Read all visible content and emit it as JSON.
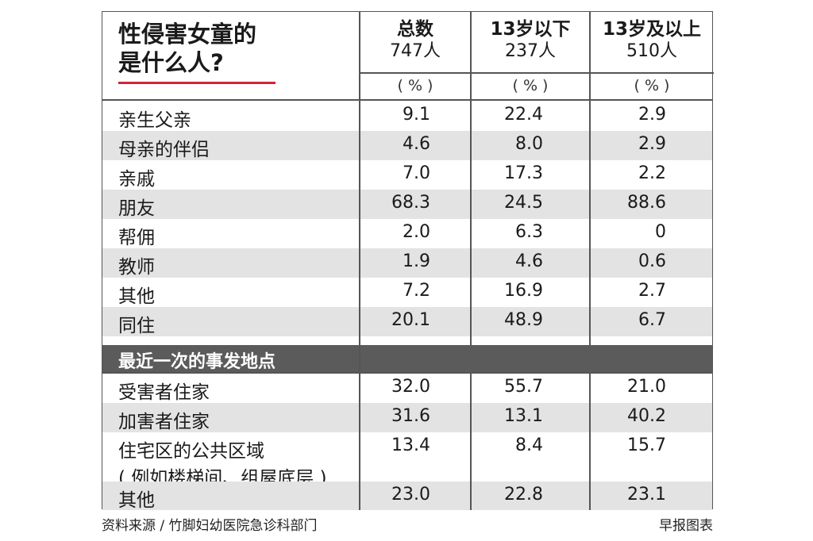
{
  "chart_data": {
    "type": "table",
    "title": "性侵害女童的是什么人?",
    "title_lines": [
      "性侵害女童的",
      "是什么人?"
    ],
    "columns": [
      {
        "name": "总数",
        "count": "747人",
        "unit": "( % )"
      },
      {
        "name": "13岁以下",
        "count": "237人",
        "unit": "( % )"
      },
      {
        "name": "13岁及以上",
        "count": "510人",
        "unit": "( % )"
      }
    ],
    "rows": [
      {
        "label": "亲生父亲",
        "values": [
          "9.1",
          "22.4",
          "2.9"
        ]
      },
      {
        "label": "母亲的伴侣",
        "values": [
          "4.6",
          "8.0",
          "2.9"
        ]
      },
      {
        "label": "亲戚",
        "values": [
          "7.0",
          "17.3",
          "2.2"
        ]
      },
      {
        "label": "朋友",
        "values": [
          "68.3",
          "24.5",
          "88.6"
        ]
      },
      {
        "label": "帮佣",
        "values": [
          "2.0",
          "6.3",
          "0"
        ]
      },
      {
        "label": "教师",
        "values": [
          "1.9",
          "4.6",
          "0.6"
        ]
      },
      {
        "label": "其他",
        "values": [
          "7.2",
          "16.9",
          "2.7"
        ]
      },
      {
        "label": "同住",
        "values": [
          "20.1",
          "48.9",
          "6.7"
        ]
      }
    ],
    "section_title": "最近一次的事发地点",
    "section_rows": [
      {
        "label": "受害者住家",
        "values": [
          "32.0",
          "55.7",
          "21.0"
        ]
      },
      {
        "label": "加害者住家",
        "values": [
          "31.6",
          "13.1",
          "40.2"
        ]
      },
      {
        "label": "住宅区的公共区域",
        "label2": "( 例如楼梯间、组屋底层 )",
        "values": [
          "13.4",
          "8.4",
          "15.7"
        ]
      },
      {
        "label": "其他",
        "values": [
          "23.0",
          "22.8",
          "23.1"
        ]
      }
    ],
    "accent_color": "#d2233a",
    "shade_color": "#e3e3e3",
    "section_color": "#5b5b5b"
  },
  "footer": {
    "source": "资料来源 / 竹脚妇幼医院急诊科部门",
    "credit": "早报图表"
  }
}
